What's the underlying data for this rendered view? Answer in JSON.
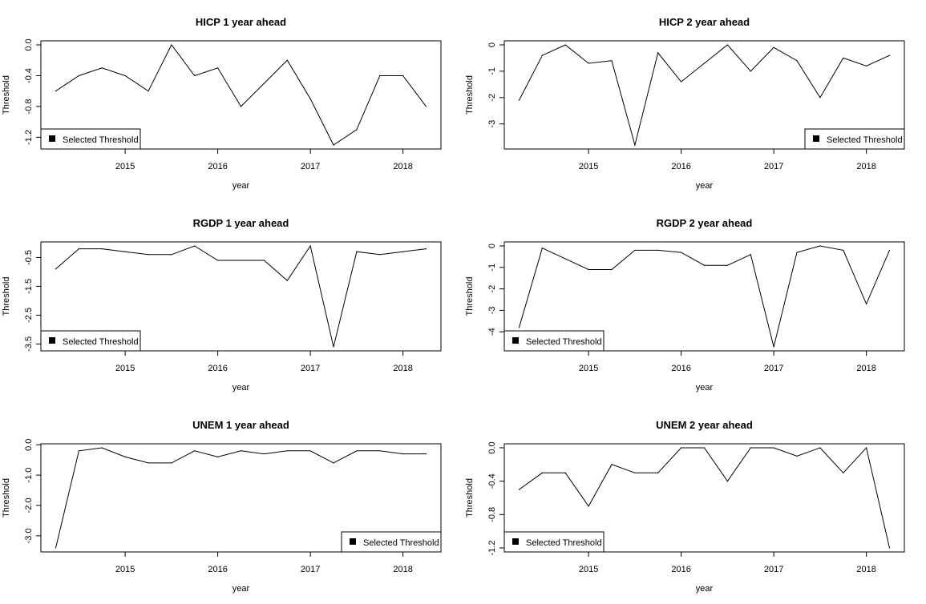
{
  "chart_data": [
    {
      "type": "line",
      "title": "HICP 1 year ahead",
      "xlabel": "year",
      "ylabel": "Threshold",
      "x": [
        2014.25,
        2014.5,
        2014.75,
        2015.0,
        2015.25,
        2015.5,
        2015.75,
        2016.0,
        2016.25,
        2016.5,
        2016.75,
        2017.0,
        2017.25,
        2017.5,
        2017.75,
        2018.0,
        2018.25
      ],
      "values": [
        -0.6,
        -0.4,
        -0.3,
        -0.4,
        -0.6,
        0.0,
        -0.4,
        -0.3,
        -0.8,
        -0.5,
        -0.2,
        -0.7,
        -1.3,
        -1.1,
        -0.4,
        -0.4,
        -0.8
      ],
      "xticks": [
        "2015",
        "2016",
        "2017",
        "2018"
      ],
      "yticks": [
        "0.0",
        "-0.4",
        "-0.8",
        "-1.2"
      ],
      "ylim": [
        -1.3,
        0.0
      ],
      "legend": {
        "label": "Selected Threshold",
        "position": "bottom-left"
      }
    },
    {
      "type": "line",
      "title": "HICP 2 year ahead",
      "xlabel": "year",
      "ylabel": "Threshold",
      "x": [
        2014.25,
        2014.5,
        2014.75,
        2015.0,
        2015.25,
        2015.5,
        2015.75,
        2016.0,
        2016.25,
        2016.5,
        2016.75,
        2017.0,
        2017.25,
        2017.5,
        2017.75,
        2018.0,
        2018.25
      ],
      "values": [
        -2.1,
        -0.4,
        0.0,
        -0.7,
        -0.6,
        -3.8,
        -0.3,
        -1.4,
        -0.7,
        0.0,
        -1.0,
        -0.1,
        -0.6,
        -2.0,
        -0.5,
        -0.8,
        -0.4
      ],
      "xticks": [
        "2015",
        "2016",
        "2017",
        "2018"
      ],
      "yticks": [
        "0",
        "-1",
        "-2",
        "-3"
      ],
      "ylim": [
        -3.8,
        0.0
      ],
      "legend": {
        "label": "Selected Threshold",
        "position": "bottom-right"
      }
    },
    {
      "type": "line",
      "title": "RGDP 1 year ahead",
      "xlabel": "year",
      "ylabel": "Threshold",
      "x": [
        2014.25,
        2014.5,
        2014.75,
        2015.0,
        2015.25,
        2015.5,
        2015.75,
        2016.0,
        2016.25,
        2016.5,
        2016.75,
        2017.0,
        2017.25,
        2017.5,
        2017.75,
        2018.0,
        2018.25
      ],
      "values": [
        -0.9,
        -0.2,
        -0.2,
        -0.3,
        -0.4,
        -0.4,
        -0.1,
        -0.6,
        -0.6,
        -0.6,
        -1.3,
        -0.1,
        -3.6,
        -0.3,
        -0.4,
        -0.3,
        -0.2
      ],
      "xticks": [
        "2015",
        "2016",
        "2017",
        "2018"
      ],
      "yticks": [
        "-0.5",
        "-1.5",
        "-2.5",
        "-3.5"
      ],
      "ylim": [
        -3.6,
        -0.1
      ],
      "legend": {
        "label": "Selected Threshold",
        "position": "bottom-left"
      }
    },
    {
      "type": "line",
      "title": "RGDP 2 year ahead",
      "xlabel": "year",
      "ylabel": "Threshold",
      "x": [
        2014.25,
        2014.5,
        2014.75,
        2015.0,
        2015.25,
        2015.5,
        2015.75,
        2016.0,
        2016.25,
        2016.5,
        2016.75,
        2017.0,
        2017.25,
        2017.5,
        2017.75,
        2018.0,
        2018.25
      ],
      "values": [
        -3.8,
        -0.1,
        -0.6,
        -1.1,
        -1.1,
        -0.2,
        -0.2,
        -0.3,
        -0.9,
        -0.9,
        -0.4,
        -4.7,
        -0.3,
        0.0,
        -0.2,
        -2.7,
        -0.2
      ],
      "xticks": [
        "2015",
        "2016",
        "2017",
        "2018"
      ],
      "yticks": [
        "0",
        "-1",
        "-2",
        "-3",
        "-4"
      ],
      "ylim": [
        -4.7,
        0.0
      ],
      "legend": {
        "label": "Selected Threshold",
        "position": "bottom-left"
      }
    },
    {
      "type": "line",
      "title": "UNEM 1 year ahead",
      "xlabel": "year",
      "ylabel": "Threshold",
      "x": [
        2014.25,
        2014.5,
        2014.75,
        2015.0,
        2015.25,
        2015.5,
        2015.75,
        2016.0,
        2016.25,
        2016.5,
        2016.75,
        2017.0,
        2017.25,
        2017.5,
        2017.75,
        2018.0,
        2018.25
      ],
      "values": [
        -3.4,
        -0.2,
        -0.1,
        -0.4,
        -0.6,
        -0.6,
        -0.2,
        -0.4,
        -0.2,
        -0.3,
        -0.2,
        -0.2,
        -0.6,
        -0.2,
        -0.2,
        -0.3,
        -0.3
      ],
      "xticks": [
        "2015",
        "2016",
        "2017",
        "2018"
      ],
      "yticks": [
        "0.0",
        "-1.0",
        "-2.0",
        "-3.0"
      ],
      "ylim": [
        -3.4,
        -0.1
      ],
      "legend": {
        "label": "Selected Threshold",
        "position": "bottom-right"
      }
    },
    {
      "type": "line",
      "title": "UNEM 2 year ahead",
      "xlabel": "year",
      "ylabel": "Threshold",
      "x": [
        2014.25,
        2014.5,
        2014.75,
        2015.0,
        2015.25,
        2015.5,
        2015.75,
        2016.0,
        2016.25,
        2016.5,
        2016.75,
        2017.0,
        2017.25,
        2017.5,
        2017.75,
        2018.0,
        2018.25
      ],
      "values": [
        -0.5,
        -0.3,
        -0.3,
        -0.7,
        -0.2,
        -0.3,
        -0.3,
        0.0,
        0.0,
        -0.4,
        0.0,
        0.0,
        -0.1,
        0.0,
        -0.3,
        0.0,
        -1.2
      ],
      "xticks": [
        "2015",
        "2016",
        "2017",
        "2018"
      ],
      "yticks": [
        "0.0",
        "-0.4",
        "-0.8",
        "-1.2"
      ],
      "ylim": [
        -1.2,
        0.0
      ],
      "legend": {
        "label": "Selected Threshold",
        "position": "bottom-left"
      }
    }
  ]
}
